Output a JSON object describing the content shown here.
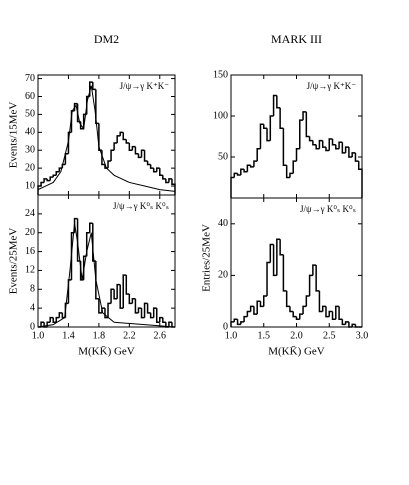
{
  "chart_data": [
    {
      "type": "histogram",
      "title": "DM2",
      "annotation": "J/ψ→γ K⁺K⁻",
      "ylabel": "Events/15MeV",
      "bins": [
        1.0,
        1.04,
        1.08,
        1.12,
        1.16,
        1.2,
        1.24,
        1.28,
        1.32,
        1.36,
        1.4,
        1.44,
        1.48,
        1.52,
        1.56,
        1.6,
        1.64,
        1.68,
        1.72,
        1.76,
        1.8,
        1.84,
        1.88,
        1.92,
        1.96,
        2.0,
        2.04,
        2.08,
        2.12,
        2.16,
        2.2,
        2.24,
        2.28,
        2.32,
        2.36,
        2.4,
        2.44,
        2.48,
        2.52,
        2.56,
        2.6,
        2.64,
        2.68,
        2.72,
        2.76,
        2.8
      ],
      "values": [
        10,
        12,
        14,
        13,
        15,
        16,
        18,
        20,
        22,
        28,
        40,
        52,
        56,
        46,
        42,
        50,
        60,
        68,
        64,
        45,
        30,
        22,
        20,
        24,
        30,
        34,
        38,
        40,
        36,
        34,
        30,
        32,
        28,
        26,
        30,
        24,
        22,
        20,
        18,
        20,
        16,
        14,
        12,
        14,
        11
      ],
      "fit": {
        "x": [
          1.0,
          1.1,
          1.2,
          1.3,
          1.4,
          1.45,
          1.5,
          1.55,
          1.6,
          1.65,
          1.7,
          1.75,
          1.8,
          1.9,
          2.0,
          2.2,
          2.4,
          2.6,
          2.8
        ],
        "values": [
          8,
          10,
          12,
          18,
          35,
          52,
          55,
          45,
          42,
          58,
          66,
          52,
          32,
          20,
          16,
          12,
          10,
          8,
          7
        ]
      },
      "xlim": [
        1.0,
        2.8
      ],
      "ylim": [
        5,
        72
      ],
      "xticks": [
        {
          "value": 1.0,
          "label": "1.0"
        },
        1.4,
        1.8,
        2.2,
        2.6
      ],
      "yticks": [
        10,
        20,
        30,
        40,
        50,
        60,
        70
      ]
    },
    {
      "type": "histogram",
      "annotation": "J/ψ→γ K⁰ₛ K⁰ₛ",
      "ylabel": "Events/25MeV",
      "xlabel": "M(KK̄) GeV",
      "bins": [
        1.0,
        1.04,
        1.08,
        1.12,
        1.16,
        1.2,
        1.24,
        1.28,
        1.32,
        1.36,
        1.4,
        1.44,
        1.48,
        1.52,
        1.56,
        1.6,
        1.64,
        1.68,
        1.72,
        1.76,
        1.8,
        1.84,
        1.88,
        1.92,
        1.96,
        2.0,
        2.04,
        2.08,
        2.12,
        2.16,
        2.2,
        2.24,
        2.28,
        2.32,
        2.36,
        2.4,
        2.44,
        2.48,
        2.52,
        2.56,
        2.6,
        2.64,
        2.68,
        2.72,
        2.76,
        2.8
      ],
      "values": [
        0,
        1,
        0,
        1,
        2,
        1,
        2,
        3,
        2,
        5,
        10,
        20,
        23,
        14,
        10,
        15,
        20,
        22,
        14,
        6,
        3,
        4,
        2,
        5,
        8,
        6,
        9,
        4,
        11,
        7,
        5,
        6,
        3,
        4,
        2,
        5,
        3,
        2,
        4,
        1,
        2,
        1,
        0,
        1,
        0
      ],
      "fit": {
        "x": [
          1.0,
          1.2,
          1.35,
          1.42,
          1.48,
          1.52,
          1.58,
          1.64,
          1.7,
          1.76,
          1.85,
          2.0,
          2.4,
          2.8
        ],
        "values": [
          0,
          0.5,
          2,
          12,
          22,
          18,
          10,
          16,
          20,
          10,
          3,
          1,
          0.5,
          0
        ]
      },
      "xlim": [
        1.0,
        2.8
      ],
      "ylim": [
        0,
        28
      ],
      "xticks": [
        {
          "value": 1.0,
          "label": "1.0"
        },
        1.4,
        1.8,
        2.2,
        2.6
      ],
      "yticks": [
        0,
        4,
        8,
        12,
        16,
        20,
        24
      ]
    },
    {
      "type": "histogram",
      "title": "MARK III",
      "annotation": "J/ψ→γ K⁺K⁻",
      "bins": [
        1.0,
        1.05,
        1.1,
        1.15,
        1.2,
        1.25,
        1.3,
        1.35,
        1.4,
        1.45,
        1.5,
        1.55,
        1.6,
        1.65,
        1.7,
        1.75,
        1.8,
        1.85,
        1.9,
        1.95,
        2.0,
        2.05,
        2.1,
        2.15,
        2.2,
        2.25,
        2.3,
        2.35,
        2.4,
        2.45,
        2.5,
        2.55,
        2.6,
        2.65,
        2.7,
        2.75,
        2.8,
        2.85,
        2.9,
        2.95,
        3.0
      ],
      "values": [
        25,
        30,
        28,
        35,
        32,
        40,
        38,
        45,
        60,
        90,
        85,
        70,
        100,
        125,
        110,
        85,
        40,
        25,
        30,
        45,
        60,
        95,
        105,
        75,
        70,
        65,
        60,
        70,
        62,
        58,
        72,
        65,
        60,
        68,
        55,
        62,
        50,
        55,
        45,
        35
      ],
      "xlim": [
        1.0,
        3.0
      ],
      "ylim": [
        0,
        150
      ],
      "xticks": [
        {
          "value": 1.0,
          "label": "1.0"
        },
        1.5,
        {
          "value": 2.0,
          "label": "2.0"
        },
        2.5,
        {
          "value": 3.0,
          "label": "3.0"
        }
      ],
      "yticks": [
        50,
        100,
        150
      ]
    },
    {
      "type": "histogram",
      "annotation": "J/ψ→γ K⁰ₛ K⁰ₛ",
      "ylabel": "Entries/25MeV",
      "xlabel": "M(KK̄) GeV",
      "bins": [
        1.0,
        1.05,
        1.1,
        1.15,
        1.2,
        1.25,
        1.3,
        1.35,
        1.4,
        1.45,
        1.5,
        1.55,
        1.6,
        1.65,
        1.7,
        1.75,
        1.8,
        1.85,
        1.9,
        1.95,
        2.0,
        2.05,
        2.1,
        2.15,
        2.2,
        2.25,
        2.3,
        2.35,
        2.4,
        2.45,
        2.5,
        2.55,
        2.6,
        2.65,
        2.7,
        2.75,
        2.8,
        2.85,
        2.9,
        2.95,
        3.0
      ],
      "values": [
        2,
        3,
        1,
        2,
        4,
        6,
        8,
        5,
        10,
        8,
        12,
        25,
        32,
        20,
        34,
        28,
        14,
        8,
        6,
        4,
        3,
        5,
        8,
        12,
        20,
        24,
        14,
        6,
        8,
        4,
        6,
        3,
        8,
        3,
        1,
        2,
        0,
        1,
        0,
        0
      ],
      "xlim": [
        1.0,
        3.0
      ],
      "ylim": [
        0,
        50
      ],
      "xticks": [
        {
          "value": 1.0,
          "label": "1.0"
        },
        1.5,
        {
          "value": 2.0,
          "label": "2.0"
        },
        2.5,
        {
          "value": 3.0,
          "label": "3.0"
        }
      ],
      "yticks": [
        0,
        20,
        40
      ]
    }
  ]
}
